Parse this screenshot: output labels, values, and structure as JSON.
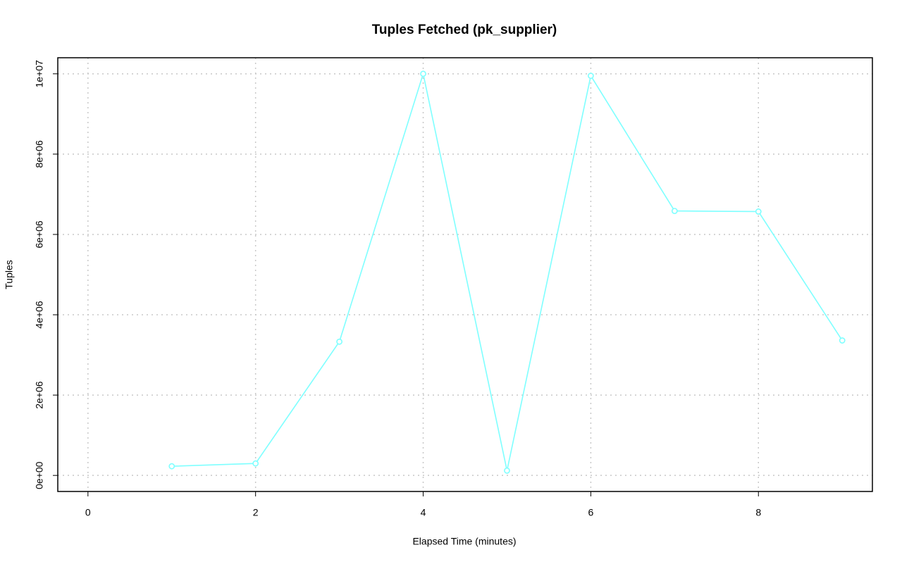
{
  "chart_data": {
    "type": "line",
    "title": "Tuples Fetched (pk_supplier)",
    "x_label": "Elapsed Time (minutes)",
    "y_label": "Tuples",
    "x": [
      1,
      2,
      3,
      4,
      5,
      6,
      7,
      8,
      9
    ],
    "values": [
      228000,
      298000,
      3330000,
      10000000,
      120000,
      9950000,
      6585000,
      6570000,
      3360000
    ],
    "color": "#7fffff",
    "xlim": [
      -0.36,
      9.36
    ],
    "xticks": [
      0,
      2,
      4,
      6,
      8
    ],
    "ylim": [
      -400000,
      10400000
    ],
    "yticks": [
      {
        "value": 0,
        "label": "0e+00"
      },
      {
        "value": 2000000,
        "label": "2e+06"
      },
      {
        "value": 4000000,
        "label": "4e+06"
      },
      {
        "value": 6000000,
        "label": "6e+06"
      },
      {
        "value": 8000000,
        "label": "8e+06"
      },
      {
        "value": 10000000,
        "label": "1e+07"
      }
    ],
    "grid": true
  }
}
